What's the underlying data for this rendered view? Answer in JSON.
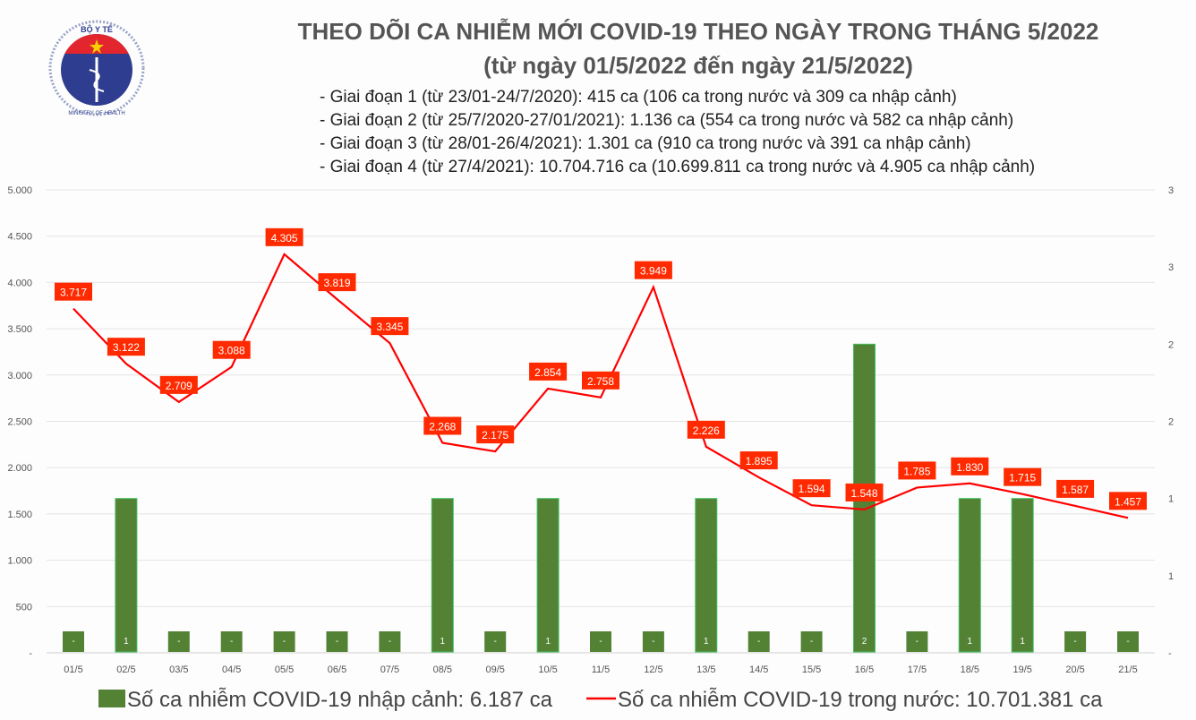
{
  "header": {
    "title": "THEO DÕI CA NHIỄM MỚI COVID-19 THEO NGÀY TRONG THÁNG 5/2022",
    "subtitle": "(từ ngày 01/5/2022 đến ngày 21/5/2022)",
    "notes": [
      "- Giai đoạn 1 (từ 23/01-24/7/2020): 415 ca (106 ca trong nước và 309 ca nhập cảnh)",
      "- Giai đoạn 2 (từ 25/7/2020-27/01/2021): 1.136 ca (554 ca trong nước và 582 ca nhập cảnh)",
      "- Giai đoạn 3 (từ 28/01-26/4/2021): 1.301 ca (910 ca trong nước và 391 ca nhập cảnh)",
      "- Giai đoạn 4 (từ 27/4/2021): 10.704.716 ca (10.699.811 ca trong nước và 4.905 ca nhập cảnh)"
    ],
    "logo_text": [
      "BỘ Y TẾ",
      "MINISTRY OF HEALTH"
    ]
  },
  "chart_data": {
    "type": "bar+line",
    "categories": [
      "01/5",
      "02/5",
      "03/5",
      "04/5",
      "05/5",
      "06/5",
      "07/5",
      "08/5",
      "09/5",
      "10/5",
      "11/5",
      "12/5",
      "13/5",
      "14/5",
      "15/5",
      "16/5",
      "17/5",
      "18/5",
      "19/5",
      "20/5",
      "21/5"
    ],
    "series": [
      {
        "name": "Số ca nhiễm COVID-19 nhập cảnh: 6.187 ca",
        "type": "bar",
        "axis": "right",
        "color": "#548235",
        "values": [
          0,
          1,
          0,
          0,
          0,
          0,
          0,
          1,
          0,
          1,
          0,
          0,
          1,
          0,
          0,
          2,
          0,
          1,
          1,
          0,
          0
        ],
        "labels": [
          "-",
          "1",
          "-",
          "-",
          "-",
          "-",
          "-",
          "1",
          "-",
          "1",
          "-",
          "-",
          "1",
          "-",
          "-",
          "2",
          "-",
          "1",
          "1",
          "-",
          "-"
        ]
      },
      {
        "name": "Số ca nhiễm COVID-19 trong nước: 10.701.381 ca",
        "type": "line",
        "axis": "left",
        "color": "#ff0000",
        "values": [
          3717,
          3122,
          2709,
          3088,
          4305,
          3819,
          3345,
          2268,
          2175,
          2854,
          2758,
          3949,
          2226,
          1895,
          1594,
          1548,
          1785,
          1830,
          1715,
          1587,
          1457
        ],
        "labels": [
          "3.717",
          "3.122",
          "2.709",
          "3.088",
          "4.305",
          "3.819",
          "3.345",
          "2.268",
          "2.175",
          "2.854",
          "2.758",
          "3.949",
          "2.226",
          "1.895",
          "1.594",
          "1.548",
          "1.785",
          "1.830",
          "1.715",
          "1.587",
          "1.457"
        ]
      }
    ],
    "left_axis": {
      "ylim": [
        0,
        5000
      ],
      "ticks": [
        "-",
        "500",
        "1.000",
        "1.500",
        "2.000",
        "2.500",
        "3.000",
        "3.500",
        "4.000",
        "4.500",
        "5.000"
      ]
    },
    "right_axis": {
      "ylim": [
        0,
        3
      ],
      "ticks": [
        "-",
        "1",
        "1",
        "2",
        "2",
        "3",
        "3"
      ]
    },
    "grid": true,
    "legend": "bottom"
  }
}
